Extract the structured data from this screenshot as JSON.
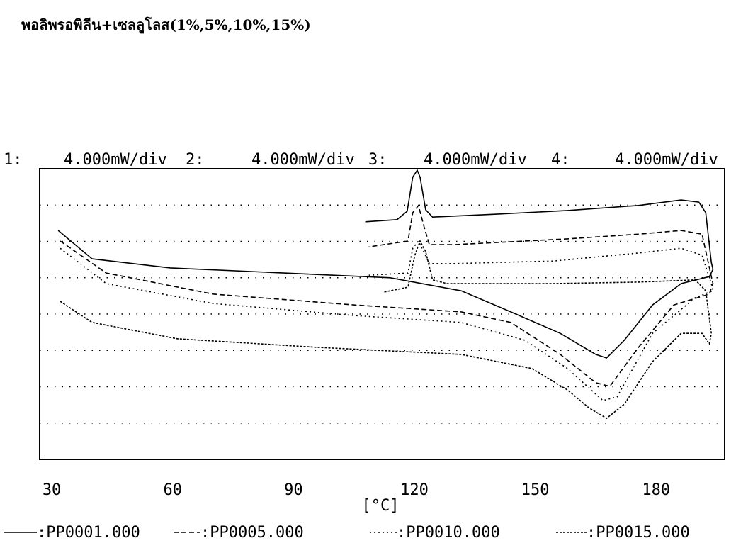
{
  "chart_data": {
    "type": "line",
    "title": "พอลิพรอพิลีน+เซลลูโลส(1%,5%,10%,15%)",
    "scale_labels": [
      [
        "1:",
        "4.000mW/div"
      ],
      [
        "2:",
        "4.000mW/div"
      ],
      [
        "3:",
        "4.000mW/div"
      ],
      [
        "4:",
        "4.000mW/div"
      ]
    ],
    "x_label": "[°C]",
    "xlim": [
      27,
      197
    ],
    "xticks": [
      30,
      60,
      90,
      120,
      150,
      180
    ],
    "ylim": [
      0,
      8
    ],
    "ygrid_lines": [
      1,
      2,
      3,
      4,
      5,
      6,
      7
    ],
    "series": [
      {
        "name": ":PP0001.000",
        "color": "#000000",
        "dash": "none",
        "x": [
          31.6,
          40.0,
          59.4,
          87.6,
          114.0,
          131.6,
          143.9,
          156.2,
          165.0,
          167.7,
          172.1,
          179.1,
          186.2,
          193.2,
          194.1,
          193.7,
          192.3,
          190.6,
          186.2,
          175.6,
          158.0,
          140.4,
          128.9,
          124.5,
          122.8,
          121.4,
          120.7,
          119.6,
          118.2,
          115.7,
          107.8
        ],
        "values": [
          6.3,
          5.52,
          5.27,
          5.13,
          5.0,
          4.64,
          4.06,
          3.47,
          2.89,
          2.79,
          3.28,
          4.25,
          4.84,
          5.03,
          5.23,
          5.42,
          6.79,
          7.08,
          7.14,
          6.99,
          6.85,
          6.75,
          6.69,
          6.67,
          6.87,
          7.77,
          7.96,
          7.77,
          6.83,
          6.6,
          6.54
        ]
      },
      {
        "name": ":PP0005.000",
        "color": "#000000",
        "dash": "7,4",
        "x": [
          32.1,
          43.5,
          70.0,
          105.2,
          131.6,
          143.9,
          156.2,
          165.0,
          168.5,
          175.6,
          184.4,
          193.2,
          194.1,
          193.7,
          191.4,
          186.2,
          175.6,
          158.0,
          129.8,
          123.7,
          122.4,
          121.0,
          119.6,
          118.4,
          108.7
        ],
        "values": [
          6.01,
          5.13,
          4.55,
          4.25,
          4.06,
          3.77,
          2.89,
          2.11,
          2.01,
          3.08,
          4.25,
          4.55,
          4.84,
          5.03,
          6.2,
          6.3,
          6.2,
          6.07,
          5.91,
          5.91,
          6.4,
          6.99,
          6.79,
          6.01,
          5.85
        ]
      },
      {
        "name": ":PP0010.000",
        "color": "#000000",
        "dash": "2,4",
        "x": [
          32.1,
          43.5,
          70.0,
          105.2,
          131.6,
          147.4,
          158.0,
          166.8,
          170.3,
          179.1,
          189.7,
          194.1,
          193.7,
          191.4,
          186.2,
          175.6,
          154.5,
          129.8,
          123.7,
          121.9,
          121.0,
          119.6,
          118.4,
          108.7
        ],
        "values": [
          5.81,
          4.84,
          4.29,
          3.96,
          3.77,
          3.28,
          2.5,
          1.62,
          1.72,
          3.47,
          4.45,
          4.64,
          4.84,
          5.62,
          5.81,
          5.68,
          5.46,
          5.39,
          5.39,
          5.81,
          6.01,
          5.81,
          5.13,
          5.07
        ]
      },
      {
        "name": ":PP0015.000",
        "color": "#000000",
        "dash": "3,2",
        "x": [
          32.1,
          40.0,
          61.2,
          96.4,
          131.6,
          149.2,
          158.0,
          163.3,
          167.7,
          172.1,
          179.1,
          186.2,
          191.4,
          193.2,
          193.7,
          192.3,
          189.7,
          175.6,
          154.5,
          128.1,
          124.5,
          122.8,
          121.4,
          120.1,
          118.4,
          112.2
        ],
        "values": [
          4.35,
          3.77,
          3.32,
          3.08,
          2.89,
          2.5,
          1.91,
          1.42,
          1.13,
          1.52,
          2.69,
          3.47,
          3.47,
          3.18,
          3.47,
          4.64,
          4.94,
          4.88,
          4.84,
          4.84,
          4.94,
          5.72,
          6.01,
          5.62,
          4.74,
          4.6
        ]
      }
    ]
  }
}
